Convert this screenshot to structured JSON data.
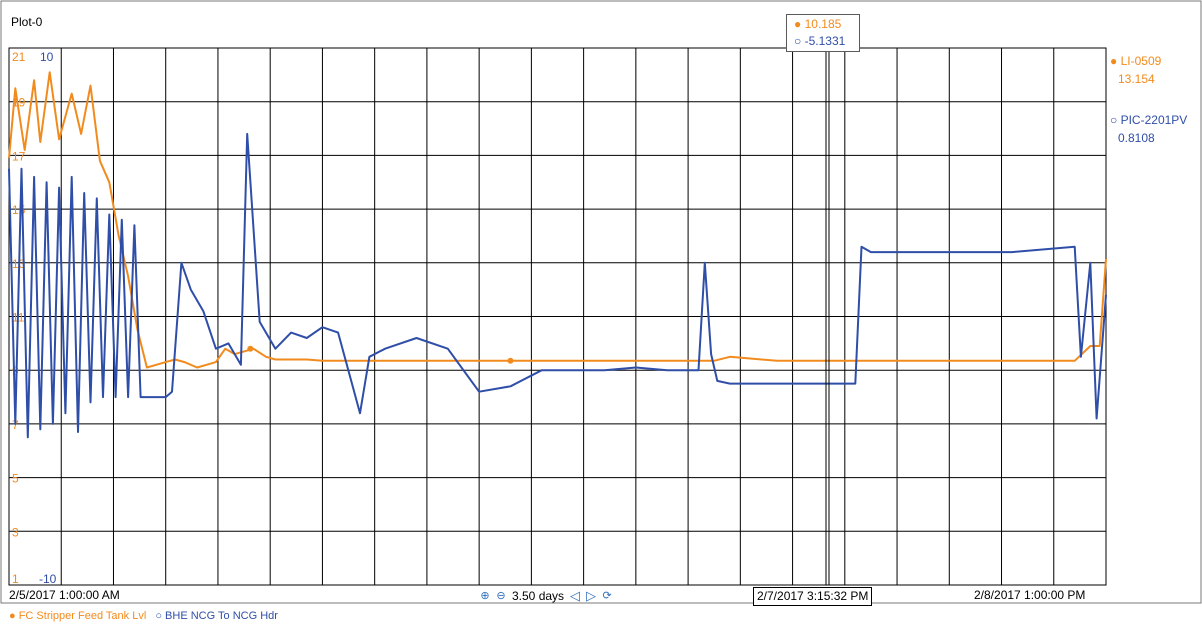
{
  "plot": {
    "title": "Plot-0"
  },
  "colors": {
    "orange": "#F28B1E",
    "blue": "#2F4EA8",
    "grid": "#000000",
    "border": "#7a7a7a"
  },
  "cursor_box": {
    "orange_value": "10.185",
    "blue_value": "-5.1331"
  },
  "right_legend": {
    "series1_name": "LI-0509",
    "series1_value": "13.154",
    "series2_name": "PIC-2201PV",
    "series2_value": "0.8108"
  },
  "axis_labels": {
    "orange_ticks": [
      "21",
      "19",
      "17",
      "15",
      "13",
      "11",
      "9",
      "7",
      "5",
      "3",
      "1"
    ],
    "blue_top": "10",
    "blue_bottom": "-10"
  },
  "x_axis": {
    "start": "2/5/2017 1:00:00 AM",
    "end": "2/8/2017 1:00:00 PM",
    "cursor_time": "2/7/2017 3:15:32 PM"
  },
  "navigation": {
    "span_label": "3.50 days",
    "zoom_in_icon": "zoom-in-icon",
    "zoom_out_icon": "zoom-out-icon",
    "prev_icon": "left-arrow-icon",
    "next_icon": "right-arrow-icon",
    "refresh_icon": "refresh-icon"
  },
  "bottom_legend": {
    "series1": "FC Stripper Feed Tank Lvl",
    "series2": "BHE NCG To NCG Hdr"
  },
  "chart_data": {
    "type": "line",
    "x_unit": "days since 2/5/2017 1:00:00 AM",
    "xlim": [
      0,
      3.5
    ],
    "grid": true,
    "series": [
      {
        "name": "FC Stripper Feed Tank Lvl",
        "tag": "LI-0509",
        "axis": "left",
        "ylim": [
          1,
          21
        ],
        "x": [
          0.0,
          0.02,
          0.05,
          0.08,
          0.1,
          0.13,
          0.16,
          0.2,
          0.23,
          0.26,
          0.29,
          0.32,
          0.35,
          0.38,
          0.41,
          0.44,
          0.47,
          0.5,
          0.53,
          0.56,
          0.6,
          0.63,
          0.66,
          0.69,
          0.72,
          0.75,
          0.78,
          0.82,
          0.85,
          0.88,
          0.9,
          0.92,
          0.95,
          1.0,
          1.05,
          1.08,
          1.12,
          1.16,
          1.2,
          1.25,
          1.4,
          1.6,
          1.8,
          2.0,
          2.2,
          2.25,
          2.3,
          2.45,
          2.7,
          2.8,
          2.9,
          3.0,
          3.1,
          3.2,
          3.4,
          3.45,
          3.48,
          3.5
        ],
        "values": [
          16.9,
          19.5,
          17.2,
          19.8,
          17.5,
          20.1,
          17.6,
          19.3,
          17.8,
          19.6,
          16.8,
          16.0,
          14.0,
          12.5,
          10.5,
          9.1,
          9.2,
          9.3,
          9.4,
          9.3,
          9.1,
          9.2,
          9.3,
          9.8,
          9.6,
          9.7,
          9.8,
          9.5,
          9.4,
          9.4,
          9.4,
          9.4,
          9.4,
          9.35,
          9.35,
          9.35,
          9.35,
          9.35,
          9.35,
          9.35,
          9.35,
          9.35,
          9.35,
          9.35,
          9.35,
          9.35,
          9.5,
          9.35,
          9.35,
          9.35,
          9.35,
          9.35,
          9.35,
          9.35,
          9.35,
          9.9,
          9.9,
          13.15
        ]
      },
      {
        "name": "BHE NCG To NCG Hdr",
        "tag": "PIC-2201PV",
        "axis": "right",
        "ylim": [
          -10,
          10
        ],
        "x": [
          0.0,
          0.02,
          0.04,
          0.06,
          0.08,
          0.1,
          0.12,
          0.14,
          0.16,
          0.18,
          0.2,
          0.22,
          0.24,
          0.26,
          0.28,
          0.3,
          0.32,
          0.34,
          0.36,
          0.38,
          0.4,
          0.42,
          0.44,
          0.46,
          0.48,
          0.5,
          0.52,
          0.55,
          0.58,
          0.62,
          0.66,
          0.7,
          0.74,
          0.76,
          0.8,
          0.85,
          0.9,
          0.95,
          1.0,
          1.05,
          1.12,
          1.15,
          1.2,
          1.3,
          1.4,
          1.5,
          1.6,
          1.7,
          1.8,
          1.9,
          2.0,
          2.1,
          2.2,
          2.22,
          2.24,
          2.26,
          2.3,
          2.5,
          2.6,
          2.7,
          2.72,
          2.75,
          3.0,
          3.2,
          3.4,
          3.42,
          3.45,
          3.47,
          3.5
        ],
        "values": [
          5.5,
          -4.0,
          5.5,
          -4.5,
          5.2,
          -4.2,
          5.0,
          -4.0,
          4.8,
          -3.6,
          5.2,
          -4.3,
          4.6,
          -3.2,
          4.4,
          -3.0,
          3.8,
          -3.0,
          3.6,
          -3.0,
          3.4,
          -3.0,
          -3.0,
          -3.0,
          -3.0,
          -3.0,
          -2.8,
          2.0,
          1.0,
          0.2,
          -1.2,
          -1.0,
          -1.8,
          6.8,
          -0.2,
          -1.2,
          -0.6,
          -0.8,
          -0.4,
          -0.6,
          -3.6,
          -1.5,
          -1.2,
          -0.8,
          -1.2,
          -2.8,
          -2.6,
          -2.0,
          -2.0,
          -2.0,
          -1.9,
          -2.0,
          -2.0,
          2.0,
          -1.4,
          -2.4,
          -2.5,
          -2.5,
          -2.5,
          -2.5,
          2.6,
          2.4,
          2.4,
          2.4,
          2.6,
          -1.5,
          2.0,
          -3.8,
          0.81
        ]
      }
    ]
  }
}
